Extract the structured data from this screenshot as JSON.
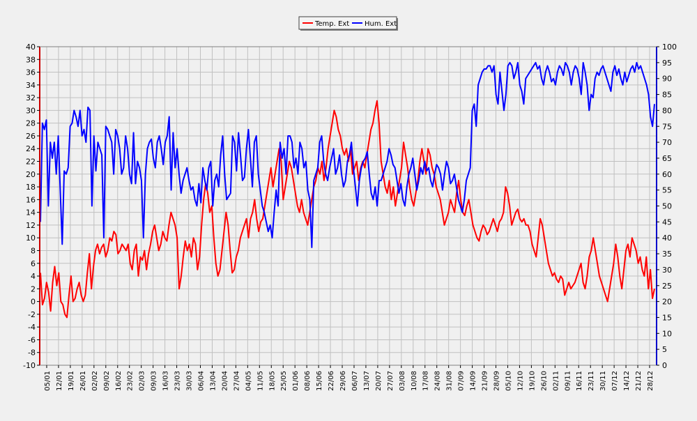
{
  "chart_data": {
    "type": "line",
    "x_tick_labels": [
      "05/01",
      "12/01",
      "19/01",
      "26/01",
      "02/02",
      "09/02",
      "16/02",
      "23/02",
      "02/03",
      "09/03",
      "16/03",
      "23/03",
      "30/03",
      "06/04",
      "13/04",
      "20/04",
      "27/04",
      "04/05",
      "11/05",
      "18/05",
      "25/05",
      "01/06",
      "08/06",
      "15/06",
      "22/06",
      "29/06",
      "06/07",
      "13/07",
      "20/07",
      "27/07",
      "03/08",
      "10/08",
      "17/08",
      "24/08",
      "31/08",
      "07/09",
      "14/09",
      "21/09",
      "28/09",
      "05/10",
      "12/10",
      "19/10",
      "26/10",
      "02/11",
      "09/11",
      "16/11",
      "23/11",
      "30/11",
      "07/12",
      "14/12",
      "21/12",
      "28/12"
    ],
    "y_left": {
      "min": -10,
      "max": 40,
      "step": 2,
      "color": "#cc0000"
    },
    "y_right": {
      "min": 0,
      "max": 100,
      "step": 5,
      "color": "#0000cc"
    },
    "grid": true,
    "legend_position": "top-center",
    "series": [
      {
        "name": "Temp. Ext",
        "axis": "left",
        "color": "#ff0000",
        "values": [
          4.5,
          -0.5,
          0.5,
          3,
          1.5,
          -1.5,
          3,
          5.5,
          2.5,
          4.5,
          0,
          -0.5,
          -2,
          -2.5,
          1,
          4,
          0,
          0.5,
          2,
          3,
          1,
          0,
          1,
          4.5,
          7.5,
          2,
          5.5,
          8,
          9,
          7.5,
          8.5,
          9,
          7,
          8,
          10,
          9.5,
          11,
          10.5,
          7.5,
          8,
          9,
          8.5,
          8,
          9,
          6,
          5,
          8,
          9,
          4,
          7,
          6.5,
          8,
          5,
          7.5,
          9,
          11,
          12,
          10,
          8,
          9,
          11,
          10,
          9.5,
          12,
          14,
          13,
          12,
          10,
          2,
          4,
          7,
          9.5,
          8,
          9,
          7,
          10,
          9,
          5,
          7,
          12,
          16,
          18.5,
          17,
          14,
          15,
          10,
          6,
          4,
          5,
          8,
          11,
          14,
          12,
          8,
          4.5,
          5,
          7,
          8,
          10,
          11,
          12,
          13,
          10,
          13,
          14,
          16,
          13,
          11,
          12.5,
          13,
          15,
          17,
          19,
          21,
          18,
          20,
          22,
          24,
          22,
          16,
          18,
          20,
          22,
          21,
          19,
          17,
          15,
          14,
          16,
          14,
          13,
          12,
          14,
          16,
          18,
          19,
          21,
          20,
          22,
          19,
          21,
          24,
          26,
          28,
          30,
          29,
          27,
          26,
          24,
          23,
          24,
          22,
          24,
          20,
          21,
          22,
          19,
          21,
          22,
          21,
          23,
          25,
          27,
          28,
          30,
          31.5,
          28,
          22,
          20,
          18,
          17,
          19,
          16,
          18,
          15,
          17,
          19,
          21,
          25,
          23,
          21,
          18,
          16,
          15,
          17,
          19,
          22,
          24,
          22,
          20,
          24,
          23,
          21,
          20,
          18,
          17,
          16,
          14,
          12,
          13,
          14,
          16,
          15,
          14,
          17,
          19,
          16,
          14,
          13.5,
          15,
          16,
          14,
          12,
          11,
          10,
          9.5,
          11,
          12,
          11.5,
          10.5,
          11,
          12,
          13,
          12,
          11,
          12.5,
          13,
          14,
          18,
          17,
          15,
          12,
          13,
          14,
          14.5,
          13,
          12.5,
          13,
          12,
          12,
          11,
          9,
          8,
          7,
          10,
          13,
          12,
          10,
          8,
          6,
          5,
          4,
          4.5,
          3.5,
          3,
          4,
          3.5,
          1,
          2,
          3,
          2,
          2.5,
          3,
          4,
          5,
          6,
          3,
          2,
          4,
          7,
          8,
          10,
          8,
          6,
          4,
          3,
          2,
          1,
          0,
          2,
          4,
          6,
          9,
          7,
          4,
          2,
          5,
          8,
          9,
          7,
          10,
          9,
          8,
          6,
          7,
          5,
          4,
          7,
          2,
          5,
          0.5,
          2
        ]
      },
      {
        "name": "Hum. Ext",
        "axis": "right",
        "color": "#0000ff",
        "values": [
          45,
          76,
          74,
          77,
          50,
          70,
          65,
          70,
          60,
          72,
          55,
          38,
          61,
          60,
          62,
          75,
          76,
          80,
          78,
          75,
          80,
          72,
          74,
          70,
          81,
          80,
          50,
          72,
          61,
          70,
          68,
          66,
          40,
          75,
          74,
          72,
          70,
          60,
          74,
          72,
          68,
          60,
          62,
          72,
          68,
          60,
          57,
          73,
          57,
          64,
          62,
          58,
          40,
          60,
          68,
          70,
          71,
          65,
          62,
          70,
          72,
          68,
          63,
          70,
          72,
          78,
          55,
          73,
          62,
          68,
          60,
          54,
          58,
          60,
          62,
          58,
          55,
          56,
          52,
          50,
          57,
          51,
          62,
          58,
          55,
          62,
          64,
          50,
          58,
          60,
          56,
          66,
          72,
          60,
          52,
          53,
          54,
          72,
          70,
          61,
          73,
          66,
          58,
          59,
          68,
          74,
          65,
          56,
          70,
          72,
          60,
          55,
          50,
          48,
          45,
          42,
          44,
          40,
          48,
          55,
          50,
          70,
          65,
          68,
          60,
          72,
          72,
          70,
          62,
          65,
          60,
          70,
          68,
          62,
          64,
          55,
          52,
          37,
          58,
          60,
          62,
          70,
          72,
          64,
          60,
          58,
          62,
          65,
          68,
          60,
          62,
          66,
          60,
          56,
          58,
          64,
          66,
          70,
          62,
          56,
          50,
          58,
          62,
          64,
          65,
          67,
          60,
          54,
          52,
          56,
          50,
          58,
          58,
          60,
          62,
          64,
          68,
          66,
          63,
          62,
          58,
          54,
          57,
          52,
          50,
          56,
          60,
          62,
          65,
          60,
          55,
          58,
          62,
          60,
          64,
          61,
          62,
          58,
          56,
          60,
          63,
          62,
          60,
          55,
          60,
          64,
          62,
          57,
          58,
          60,
          56,
          52,
          50,
          48,
          52,
          58,
          60,
          62,
          80,
          82,
          75,
          88,
          90,
          92,
          93,
          93,
          94,
          94,
          92,
          94,
          85,
          82,
          92,
          86,
          80,
          85,
          94,
          95,
          94,
          90,
          92,
          95,
          88,
          86,
          82,
          90,
          91,
          92,
          93,
          94,
          95,
          93,
          94,
          90,
          88,
          92,
          94,
          92,
          89,
          90,
          88,
          92,
          94,
          93,
          91,
          95,
          94,
          92,
          88,
          92,
          94,
          93,
          90,
          85,
          95,
          92,
          88,
          80,
          85,
          84,
          90,
          92,
          91,
          93,
          94,
          92,
          90,
          88,
          86,
          92,
          94,
          91,
          93,
          90,
          88,
          92,
          89,
          91,
          93,
          94,
          92,
          95,
          93,
          94,
          92,
          90,
          88,
          85,
          78,
          75,
          82
        ]
      }
    ]
  }
}
